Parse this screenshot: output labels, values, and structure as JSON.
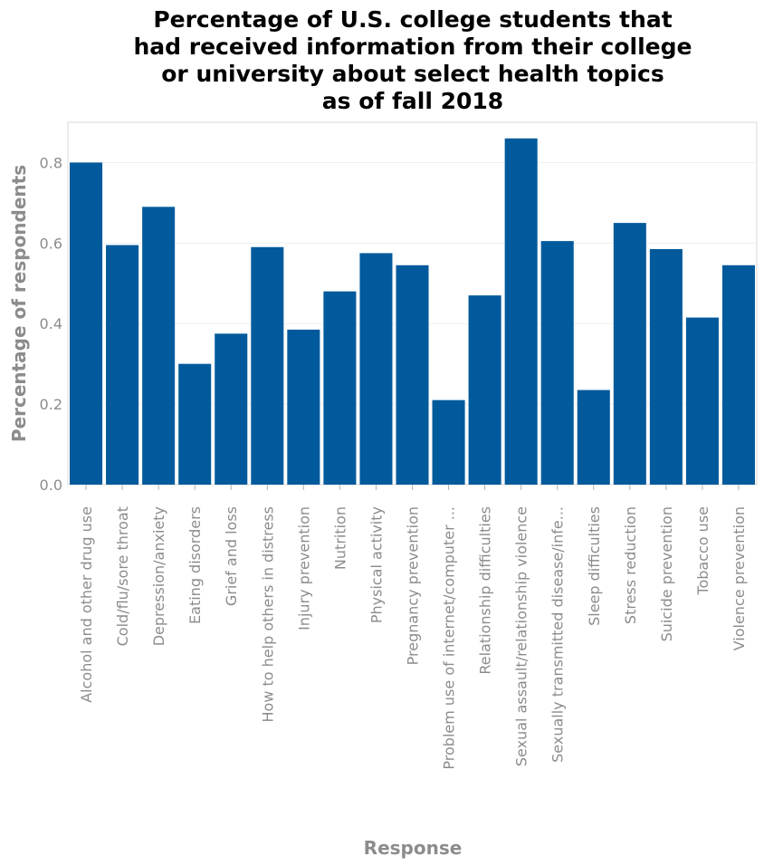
{
  "chart_data": {
    "type": "bar",
    "title_lines": [
      "Percentage of U.S. college students that",
      "had received information from their college",
      "or university about select health topics",
      "as of fall 2018"
    ],
    "xlabel": "Response",
    "ylabel": "Percentage of respondents",
    "ylim": [
      0,
      0.9
    ],
    "yticks": [
      "0.0",
      "0.2",
      "0.4",
      "0.6",
      "0.8"
    ],
    "grid": true,
    "bar_color": "#005a9c",
    "categories": [
      "Alcohol and other drug use",
      "Cold/flu/sore throat",
      "Depression/anxiety",
      "Eating disorders",
      "Grief and loss",
      "How to help others in distress",
      "Injury prevention",
      "Nutrition",
      "Physical activity",
      "Pregnancy prevention",
      "Problem use of internet/computer ...",
      "Relationship difficulties",
      "Sexual assault/relationship violence",
      "Sexually transmitted disease/infe...",
      "Sleep difficulties",
      "Stress reduction",
      "Suicide prevention",
      "Tobacco use",
      "Violence prevention"
    ],
    "values": [
      0.8,
      0.595,
      0.69,
      0.3,
      0.375,
      0.59,
      0.385,
      0.48,
      0.575,
      0.545,
      0.21,
      0.47,
      0.86,
      0.605,
      0.235,
      0.65,
      0.585,
      0.415,
      0.545
    ]
  }
}
